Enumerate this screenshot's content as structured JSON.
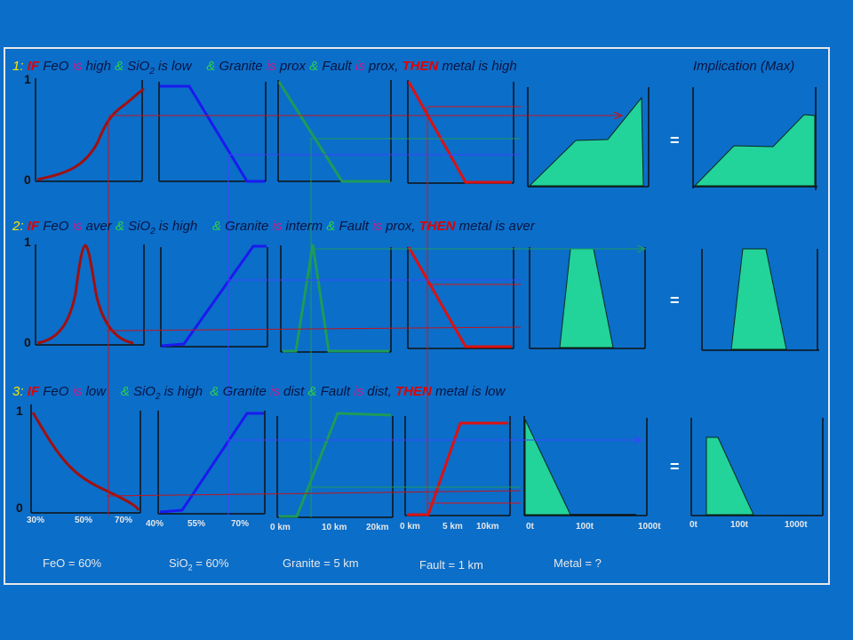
{
  "colors": {
    "background": "#0b6ec9",
    "feo_curve": "#a01010",
    "sio2_line": "#1a1aee",
    "granite_line": "#1f9a5a",
    "fault_line": "#dd1111",
    "metal_fill": "#22d39a",
    "rule_text": "#0a1440",
    "highlight_yellow": "#f4e800",
    "highlight_red": "#e00000",
    "highlight_green": "#2fd04a"
  },
  "header": {
    "implication": "Implication (Max)"
  },
  "rules": [
    {
      "num": "1:",
      "if": "IF",
      "feo": "FeO",
      "is1": "is",
      "feo_term": "high",
      "amp1": "&",
      "sio2": "SiO",
      "sub": "2",
      "is2": "is",
      "sio2_term": "low",
      "amp2": "&",
      "granite": "Granite",
      "is3": "is",
      "granite_term": "prox",
      "amp3": "&",
      "fault": "Fault",
      "is4": "is",
      "fault_term": "prox,",
      "then": "THEN",
      "metal": "metal",
      "is5": "is",
      "metal_term": "high"
    },
    {
      "num": "2:",
      "if": "IF",
      "feo": "FeO",
      "is1": "is",
      "feo_term": "aver",
      "amp1": "&",
      "sio2": "SiO",
      "sub": "2",
      "is2": "is",
      "sio2_term": "high",
      "amp2": "&",
      "granite": "Granite",
      "is3": "is",
      "granite_term": "interm",
      "amp3": "&",
      "fault": "Fault",
      "is4": "is",
      "fault_term": "prox,",
      "then": "THEN",
      "metal": "metal",
      "is5": "is",
      "metal_term": "aver"
    },
    {
      "num": "3:",
      "if": "IF",
      "feo": "FeO",
      "is1": "is",
      "feo_term": "low",
      "amp1": "&",
      "sio2": "SiO",
      "sub": "2",
      "is2": "is",
      "sio2_term": "high",
      "amp2": "&",
      "granite": "Granite",
      "is3": "is",
      "granite_term": "dist",
      "amp3": "&",
      "fault": "Fault",
      "is4": "is",
      "fault_term": "dist,",
      "then": "THEN",
      "metal": "metal",
      "is5": "is",
      "metal_term": "low"
    }
  ],
  "y_axis": {
    "one": "1",
    "zero": "0"
  },
  "ticks": {
    "feo": [
      "30%",
      "50%",
      "70%"
    ],
    "sio2": [
      "40%",
      "55%",
      "70%"
    ],
    "granite": [
      "0 km",
      "10 km",
      "20km"
    ],
    "fault": [
      "0 km",
      "5 km",
      "10km"
    ],
    "metal": [
      "0t",
      "100t",
      "1000t"
    ],
    "implication": [
      "0t",
      "100t",
      "1000t"
    ]
  },
  "inputs": {
    "feo": "FeO = 60%",
    "sio2_prefix": "SiO",
    "sio2_sub": "2",
    "sio2_suffix": " = 60%",
    "granite": "Granite = 5 km",
    "fault": "Fault = 1 km",
    "metal": "Metal =  ?"
  },
  "equals": "="
}
